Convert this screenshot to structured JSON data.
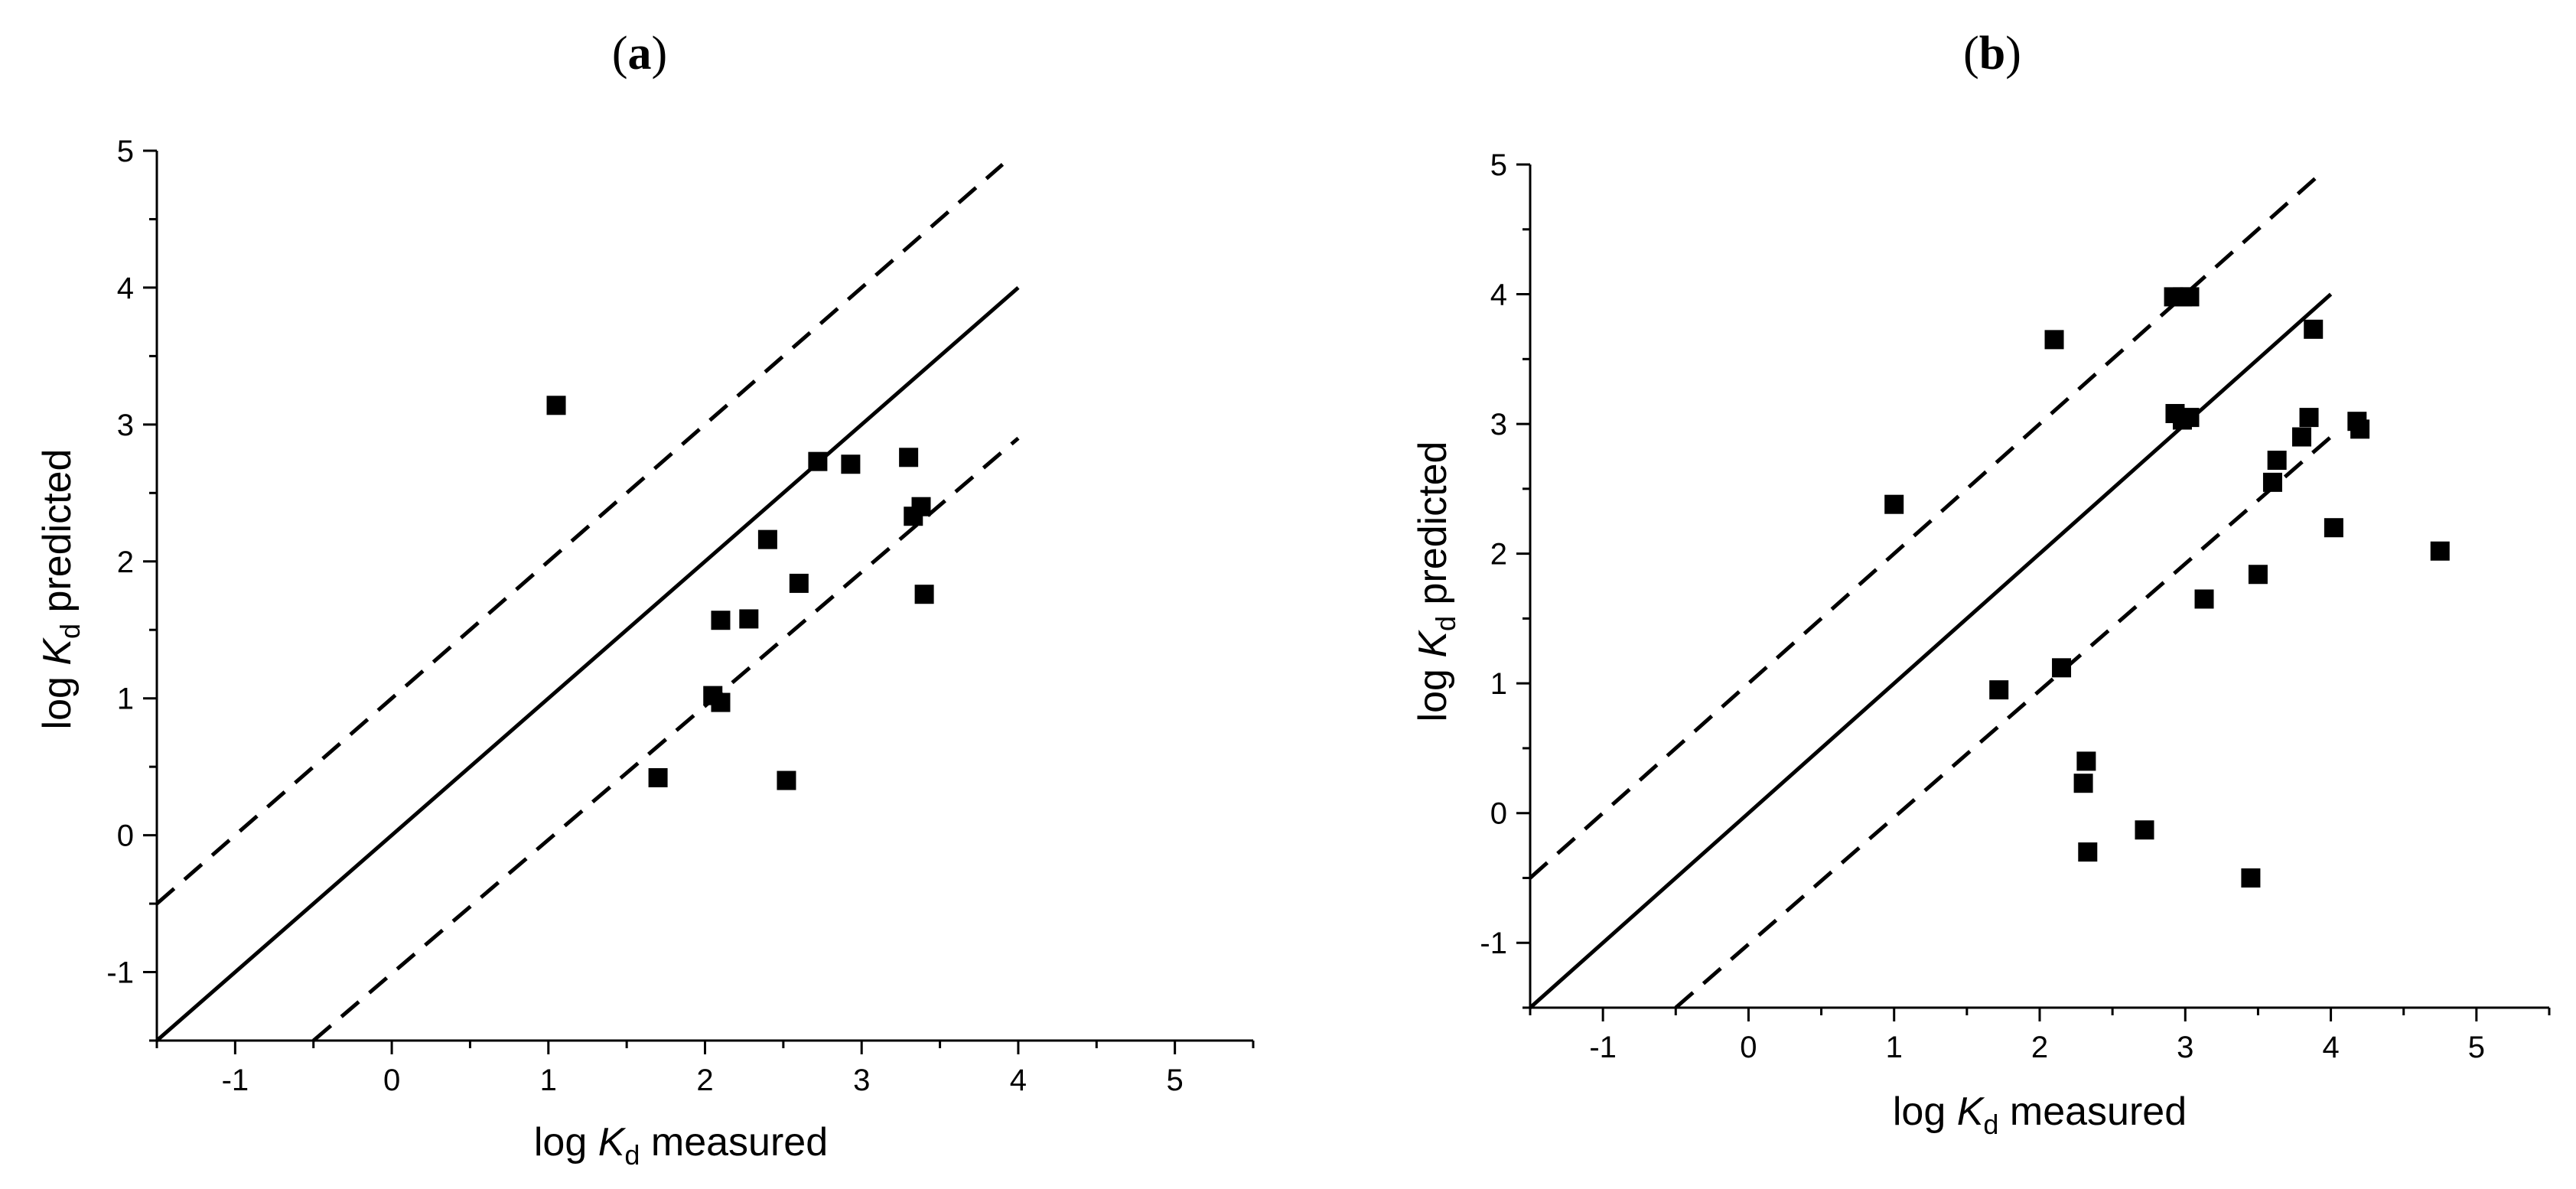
{
  "chart_data": [
    {
      "type": "scatter",
      "panel": "a",
      "title_open": "(",
      "title_letter": "a",
      "title_close": ")",
      "xlabel": {
        "pre": "log ",
        "k": "K",
        "sub": "d",
        "post": " measured"
      },
      "ylabel": {
        "pre": "log ",
        "k": "K",
        "sub": "d",
        "post": " predicted"
      },
      "xlim": [
        -1.5,
        5.5
      ],
      "ylim": [
        -1.5,
        5
      ],
      "xticks": [
        -1,
        0,
        1,
        2,
        3,
        4,
        5
      ],
      "yticks": [
        -1,
        0,
        1,
        2,
        3,
        4,
        5
      ],
      "lines": [
        {
          "name": "identity",
          "style": "solid",
          "x": [
            -1.5,
            4.0
          ],
          "y": [
            -1.5,
            4.0
          ]
        },
        {
          "name": "upper-bound",
          "style": "dashed",
          "x": [
            -1.5,
            3.9
          ],
          "y": [
            -0.5,
            4.9
          ]
        },
        {
          "name": "lower-bound",
          "style": "dashed",
          "x": [
            -0.5,
            4.0
          ],
          "y": [
            -1.5,
            2.9
          ]
        }
      ],
      "points": [
        {
          "x": 1.05,
          "y": 3.14
        },
        {
          "x": 1.7,
          "y": 0.42
        },
        {
          "x": 2.05,
          "y": 1.02
        },
        {
          "x": 2.1,
          "y": 1.57
        },
        {
          "x": 2.1,
          "y": 0.97
        },
        {
          "x": 2.28,
          "y": 1.58
        },
        {
          "x": 2.4,
          "y": 2.16
        },
        {
          "x": 2.52,
          "y": 0.4
        },
        {
          "x": 2.6,
          "y": 1.84
        },
        {
          "x": 2.72,
          "y": 2.73
        },
        {
          "x": 2.93,
          "y": 2.71
        },
        {
          "x": 3.3,
          "y": 2.76
        },
        {
          "x": 3.33,
          "y": 2.33
        },
        {
          "x": 3.38,
          "y": 2.4
        },
        {
          "x": 3.4,
          "y": 1.76
        }
      ]
    },
    {
      "type": "scatter",
      "panel": "b",
      "title_open": "(",
      "title_letter": "b",
      "title_close": ")",
      "xlabel": {
        "pre": "log ",
        "k": "K",
        "sub": "d",
        "post": " measured"
      },
      "ylabel": {
        "pre": "log ",
        "k": "K",
        "sub": "d",
        "post": " predicted"
      },
      "xlim": [
        -1.5,
        5.5
      ],
      "ylim": [
        -1.5,
        5
      ],
      "xticks": [
        -1,
        0,
        1,
        2,
        3,
        4,
        5
      ],
      "yticks": [
        -1,
        0,
        1,
        2,
        3,
        4,
        5
      ],
      "lines": [
        {
          "name": "identity",
          "style": "solid",
          "x": [
            -1.5,
            4.0
          ],
          "y": [
            -1.5,
            4.0
          ]
        },
        {
          "name": "upper-bound",
          "style": "dashed",
          "x": [
            -1.5,
            3.9
          ],
          "y": [
            -0.5,
            4.9
          ]
        },
        {
          "name": "lower-bound",
          "style": "dashed",
          "x": [
            -0.5,
            4.0
          ],
          "y": [
            -1.5,
            2.9
          ]
        }
      ],
      "points": [
        {
          "x": 1.0,
          "y": 2.38
        },
        {
          "x": 1.72,
          "y": 0.95
        },
        {
          "x": 2.1,
          "y": 3.65
        },
        {
          "x": 2.15,
          "y": 1.12
        },
        {
          "x": 2.3,
          "y": 0.23
        },
        {
          "x": 2.32,
          "y": 0.4
        },
        {
          "x": 2.33,
          "y": -0.3
        },
        {
          "x": 2.72,
          "y": -0.13
        },
        {
          "x": 2.92,
          "y": 3.98
        },
        {
          "x": 2.93,
          "y": 3.08
        },
        {
          "x": 2.98,
          "y": 3.98
        },
        {
          "x": 2.98,
          "y": 3.03
        },
        {
          "x": 3.03,
          "y": 3.98
        },
        {
          "x": 3.03,
          "y": 3.05
        },
        {
          "x": 3.13,
          "y": 1.65
        },
        {
          "x": 3.45,
          "y": -0.5
        },
        {
          "x": 3.5,
          "y": 1.84
        },
        {
          "x": 3.6,
          "y": 2.55
        },
        {
          "x": 3.63,
          "y": 2.72
        },
        {
          "x": 3.8,
          "y": 2.9
        },
        {
          "x": 3.85,
          "y": 3.05
        },
        {
          "x": 3.88,
          "y": 3.73
        },
        {
          "x": 4.02,
          "y": 2.2
        },
        {
          "x": 4.18,
          "y": 3.02
        },
        {
          "x": 4.2,
          "y": 2.96
        },
        {
          "x": 4.75,
          "y": 2.02
        }
      ]
    }
  ]
}
